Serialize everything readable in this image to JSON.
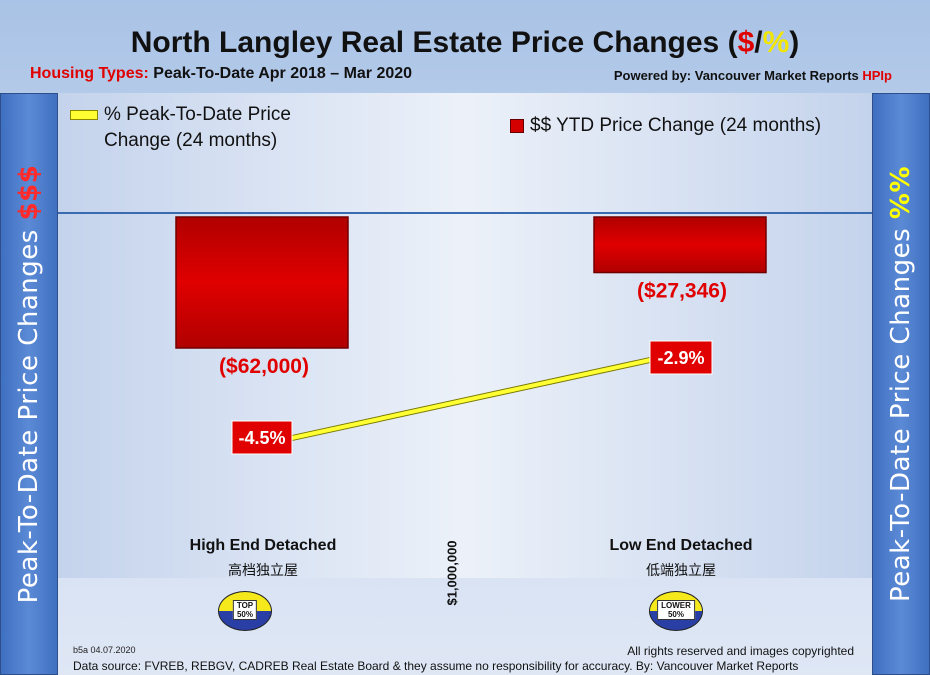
{
  "header": {
    "title_main": "North Langley Real Estate Price Changes (",
    "title_dollar": "$",
    "title_slash": "/",
    "title_percent": "%",
    "title_close": ")",
    "subtitle_prefix": "Housing Types:",
    "subtitle_period": " Peak-To-Date Apr 2018 – Mar 2020",
    "powered_prefix": "Powered by: Vancouver Market Reports ",
    "powered_brand": "HPIp"
  },
  "side_left": {
    "text": "Peak-To-Date Price Changes ",
    "accent": "$$$"
  },
  "side_right": {
    "text": "Peak-To-Date  Price  Changes  ",
    "accent": "%%"
  },
  "legend": {
    "line_label_1": "% Peak-To-Date Price",
    "line_label_2": "Change (24 months)",
    "bar_label": "$$ YTD Price Change (24 months)"
  },
  "categories": [
    {
      "name": "High End Detached",
      "chinese": "高档独立屋",
      "badge_line1": "TOP",
      "badge_line2": "50%"
    },
    {
      "name": "Low End Detached",
      "chinese": "低端独立屋",
      "badge_line1": "LOWER",
      "badge_line2": "50%"
    }
  ],
  "divider_label": "$1,000,000",
  "footer": {
    "code": "b5a 04.07.2020",
    "rights": "All rights reserved and  images copyrighted",
    "source": "Data source: FVREB, REBGV, CADREB Real Estate Board & they assume no responsibility for accuracy. By: Vancouver Market Reports"
  },
  "colors": {
    "bar": "#d40000",
    "line": "#ffff33",
    "label_red": "#e00000",
    "axis_line": "#3a6ab0"
  },
  "chart_data": {
    "type": "bar",
    "title": "North Langley Real Estate Price Changes ($/%)",
    "categories": [
      "High End Detached",
      "Low End Detached"
    ],
    "series": [
      {
        "name": "$$ YTD Price Change (24 months)",
        "type": "bar",
        "values": [
          -62000,
          -27346
        ],
        "labels": [
          "($62,000)",
          "($27,346)"
        ]
      },
      {
        "name": "% Peak-To-Date Price Change (24 months)",
        "type": "line",
        "values": [
          -4.5,
          -2.9
        ],
        "labels": [
          "-4.5%",
          "-2.9%"
        ]
      }
    ],
    "dollar_range": [
      -110000,
      0
    ],
    "percent_range": [
      -5.5,
      0
    ],
    "grid": false,
    "legend": "top"
  }
}
